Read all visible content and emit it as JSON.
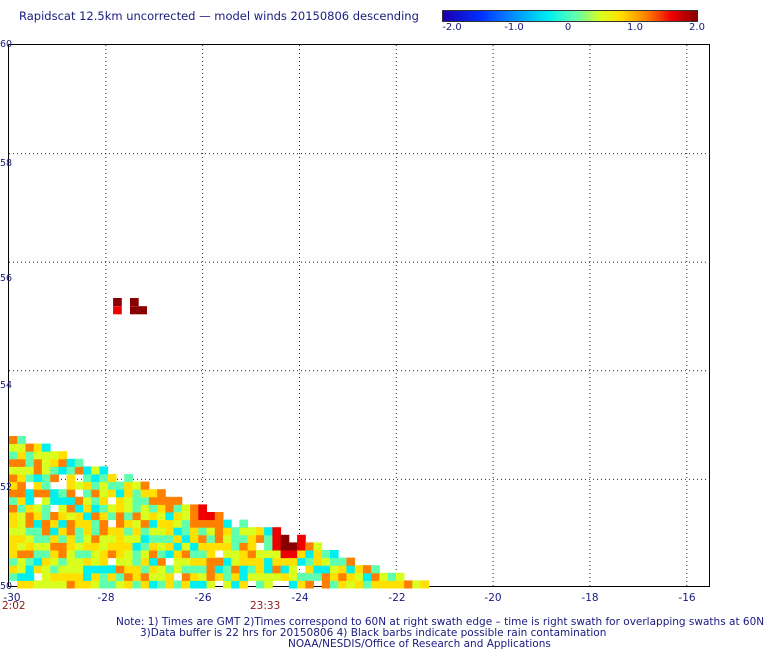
{
  "title": "Rapidscat 12.5km uncorrected — model winds 20150806 descending",
  "colorbar": {
    "ticks": [
      "-2.0",
      "-1.0",
      "0",
      "1.0",
      "2.0"
    ],
    "range": [
      -2.0,
      2.0
    ],
    "colors": [
      "#1a00b0",
      "#0030ff",
      "#00a0ff",
      "#00f0f0",
      "#60ffb0",
      "#d8ff20",
      "#ffe000",
      "#ff8000",
      "#ee0000",
      "#880000"
    ]
  },
  "map": {
    "lon_range": [
      -30,
      -15.5
    ],
    "lat_range": [
      50,
      60
    ],
    "x_ticks": [
      "-30",
      "-28",
      "-26",
      "-24",
      "-22",
      "-20",
      "-18",
      "-16"
    ],
    "y_ticks": [
      "60",
      "58",
      "56",
      "54",
      "52",
      "50"
    ],
    "grid_lons": [
      -28,
      -26,
      -24,
      -22,
      -20,
      -18,
      -16
    ],
    "grid_lats": [
      52,
      54,
      56,
      58
    ],
    "swath_times": [
      {
        "label": "2:02",
        "lon": -30
      },
      {
        "label": "23:33",
        "lon": -25.0
      }
    ],
    "swath": {
      "cell_lon": 0.17,
      "cell_lat": 0.14,
      "edge_points": [
        [
          -30,
          52.8
        ],
        [
          -28.9,
          52.4
        ],
        [
          -27.0,
          51.8
        ],
        [
          -25.5,
          51.2
        ],
        [
          -24.0,
          50.9
        ],
        [
          -22.5,
          50.3
        ],
        [
          -21.3,
          50.0
        ]
      ],
      "hotspots": [
        {
          "lon": -24.3,
          "lat": 50.8,
          "value": 2.0
        },
        {
          "lon": -26.0,
          "lat": 51.3,
          "value": 1.6
        }
      ]
    },
    "isolated_cells": [
      {
        "lon": -27.85,
        "lat": 55.2,
        "value": 2.0
      },
      {
        "lon": -27.85,
        "lat": 55.05,
        "value": 1.5
      },
      {
        "lon": -27.5,
        "lat": 55.2,
        "value": 2.0
      },
      {
        "lon": -27.5,
        "lat": 55.05,
        "value": 2.0
      },
      {
        "lon": -27.33,
        "lat": 55.05,
        "value": 2.0
      }
    ]
  },
  "notes": [
    "Note: 1) Times are GMT 2)Times correspond to 60N at right swath edge – time is right swath for overlapping swaths at 60N",
    "3)Data buffer is 22 hrs for 20150806 4) Black barbs indicate possible rain contamination",
    "NOAA/NESDIS/Office of Research and Applications"
  ]
}
